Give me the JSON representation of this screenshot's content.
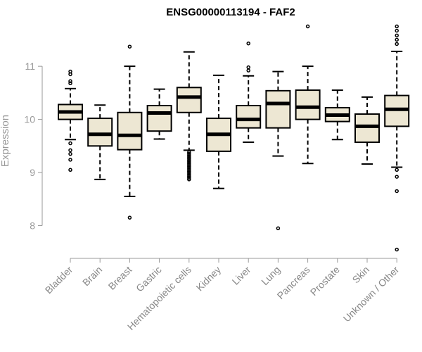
{
  "chart_data": {
    "type": "boxplot",
    "title": "ENSG00000113194 - FAF2",
    "xlabel": "",
    "ylabel": "Expression",
    "ylim": [
      7.45,
      11.85
    ],
    "yticks": [
      8,
      9,
      10,
      11
    ],
    "box_fill": "#ede7d3",
    "box_stroke": "#000000",
    "categories": [
      "Bladder",
      "Brain",
      "Breast",
      "Gastric",
      "Hematopoietic cells",
      "Kidney",
      "Liver",
      "Lung",
      "Pancreas",
      "Prostate",
      "Skin",
      "Unknown / Other"
    ],
    "boxes": [
      {
        "label": "Bladder",
        "whisker_low": 9.62,
        "q1": 10.0,
        "median": 10.14,
        "q3": 10.28,
        "whisker_high": 10.58,
        "outliers": [
          10.9,
          10.85,
          10.72,
          10.68,
          9.55,
          9.42,
          9.35,
          9.24,
          9.05
        ]
      },
      {
        "label": "Brain",
        "whisker_low": 8.87,
        "q1": 9.5,
        "median": 9.72,
        "q3": 10.02,
        "whisker_high": 10.27,
        "outliers": []
      },
      {
        "label": "Breast",
        "whisker_low": 8.55,
        "q1": 9.43,
        "median": 9.7,
        "q3": 10.13,
        "whisker_high": 11.0,
        "outliers": [
          11.37,
          8.15
        ]
      },
      {
        "label": "Gastric",
        "whisker_low": 9.63,
        "q1": 9.78,
        "median": 10.12,
        "q3": 10.26,
        "whisker_high": 10.57,
        "outliers": []
      },
      {
        "label": "Hematopoietic cells",
        "whisker_low": 9.42,
        "q1": 10.13,
        "median": 10.42,
        "q3": 10.6,
        "whisker_high": 11.27,
        "outliers": [
          9.38,
          9.35,
          9.32,
          9.29,
          9.26,
          9.23,
          9.2,
          9.17,
          9.14,
          9.11,
          9.08,
          9.05,
          9.02,
          8.99,
          8.96,
          8.93,
          8.9,
          8.87
        ]
      },
      {
        "label": "Kidney",
        "whisker_low": 8.7,
        "q1": 9.4,
        "median": 9.72,
        "q3": 10.02,
        "whisker_high": 10.83,
        "outliers": []
      },
      {
        "label": "Liver",
        "whisker_low": 9.57,
        "q1": 9.84,
        "median": 10.0,
        "q3": 10.26,
        "whisker_high": 10.82,
        "outliers": [
          11.43,
          10.98,
          10.92
        ]
      },
      {
        "label": "Lung",
        "whisker_low": 9.31,
        "q1": 9.84,
        "median": 10.3,
        "q3": 10.54,
        "whisker_high": 10.9,
        "outliers": [
          7.95
        ]
      },
      {
        "label": "Pancreas",
        "whisker_low": 9.17,
        "q1": 10.0,
        "median": 10.23,
        "q3": 10.55,
        "whisker_high": 11.0,
        "outliers": [
          11.75
        ]
      },
      {
        "label": "Prostate",
        "whisker_low": 9.62,
        "q1": 9.96,
        "median": 10.08,
        "q3": 10.22,
        "whisker_high": 10.55,
        "outliers": []
      },
      {
        "label": "Skin",
        "whisker_low": 9.16,
        "q1": 9.57,
        "median": 9.87,
        "q3": 10.1,
        "whisker_high": 10.42,
        "outliers": []
      },
      {
        "label": "Unknown / Other",
        "whisker_low": 9.1,
        "q1": 9.87,
        "median": 10.19,
        "q3": 10.45,
        "whisker_high": 11.28,
        "outliers": [
          11.75,
          11.67,
          11.58,
          11.5,
          11.42,
          9.05,
          8.92,
          8.65,
          7.55
        ]
      }
    ]
  }
}
